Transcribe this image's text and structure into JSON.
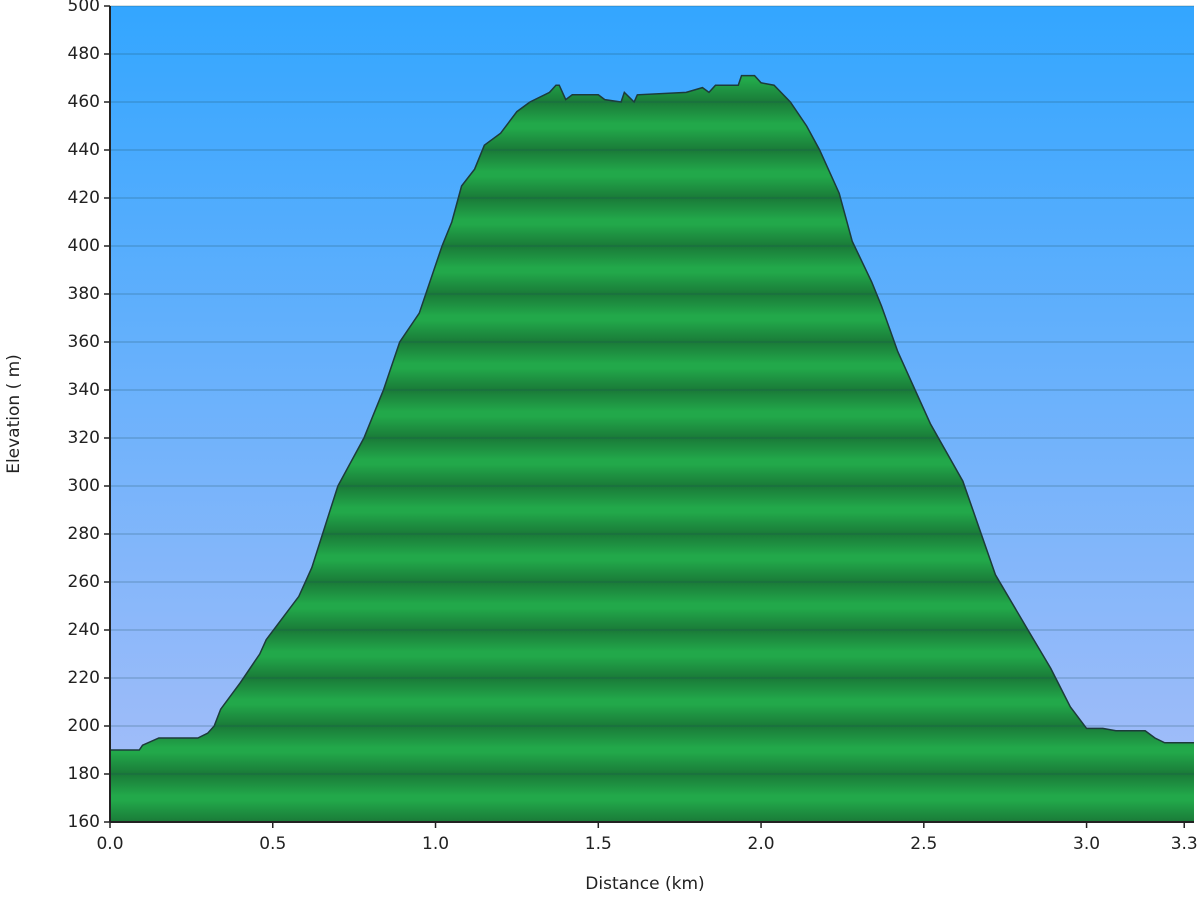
{
  "chart_data": {
    "type": "area",
    "x_label": "Distance (km)",
    "y_label": "Elevation ( m)",
    "color": "#22a84a",
    "grid": true,
    "xlim": [
      0,
      3.33
    ],
    "ylim": [
      160,
      500
    ],
    "xticks": [
      {
        "value": 0,
        "label": "0.0"
      },
      0.5,
      {
        "value": 1,
        "label": "1.0"
      },
      1.5,
      {
        "value": 2,
        "label": "2.0"
      },
      2.5,
      {
        "value": 3,
        "label": "3.0"
      },
      3.3
    ],
    "yticks": [
      160,
      180,
      200,
      220,
      240,
      260,
      280,
      300,
      320,
      340,
      360,
      380,
      400,
      420,
      440,
      460,
      480,
      500
    ],
    "x": [
      0,
      0.09,
      0.1,
      0.15,
      0.27,
      0.3,
      0.32,
      0.34,
      0.4,
      0.46,
      0.48,
      0.58,
      0.62,
      0.7,
      0.78,
      0.84,
      0.89,
      0.95,
      1.02,
      1.05,
      1.08,
      1.12,
      1.15,
      1.2,
      1.25,
      1.29,
      1.35,
      1.37,
      1.38,
      1.4,
      1.42,
      1.5,
      1.52,
      1.57,
      1.58,
      1.61,
      1.62,
      1.77,
      1.82,
      1.84,
      1.86,
      1.93,
      1.94,
      1.98,
      2.0,
      2.04,
      2.09,
      2.14,
      2.18,
      2.24,
      2.28,
      2.34,
      2.37,
      2.42,
      2.52,
      2.62,
      2.72,
      2.82,
      2.89,
      2.95,
      3.0,
      3.05,
      3.09,
      3.18,
      3.21,
      3.24,
      3.33
    ],
    "values": [
      190,
      190,
      192,
      195,
      195,
      197,
      200,
      207,
      218,
      230,
      236,
      254,
      266,
      300,
      320,
      340,
      360,
      372,
      400,
      410,
      425,
      432,
      442,
      447,
      456,
      460,
      464,
      467,
      467,
      461,
      463,
      463,
      461,
      460,
      464,
      460,
      463,
      464,
      466,
      464,
      467,
      467,
      471,
      471,
      468,
      467,
      460,
      450,
      440,
      422,
      402,
      385,
      375,
      356,
      326,
      302,
      263,
      240,
      224,
      208,
      199,
      199,
      198,
      198,
      195,
      193,
      193
    ]
  }
}
